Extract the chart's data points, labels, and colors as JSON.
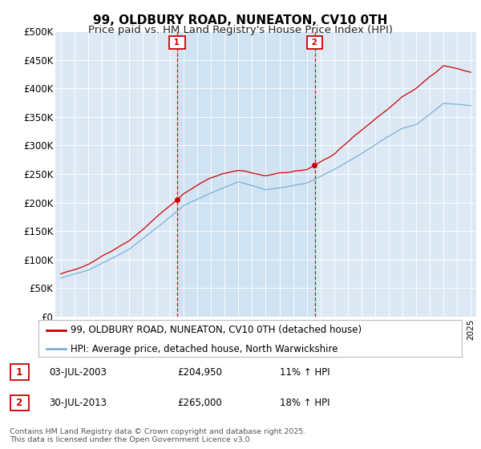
{
  "title": "99, OLDBURY ROAD, NUNEATON, CV10 0TH",
  "subtitle": "Price paid vs. HM Land Registry's House Price Index (HPI)",
  "ylabel_ticks": [
    "£0",
    "£50K",
    "£100K",
    "£150K",
    "£200K",
    "£250K",
    "£300K",
    "£350K",
    "£400K",
    "£450K",
    "£500K"
  ],
  "ytick_values": [
    0,
    50000,
    100000,
    150000,
    200000,
    250000,
    300000,
    350000,
    400000,
    450000,
    500000
  ],
  "ylim": [
    0,
    500000
  ],
  "background_color": "#dce9f5",
  "shade_color": "#c8dff0",
  "hpi_color": "#7ab0d8",
  "price_color": "#cc0000",
  "annotation1": {
    "label": "1",
    "date_str": "03-JUL-2003",
    "price": "£204,950",
    "pct": "11% ↑ HPI"
  },
  "annotation2": {
    "label": "2",
    "date_str": "30-JUL-2013",
    "price": "£265,000",
    "pct": "18% ↑ HPI"
  },
  "legend_price": "99, OLDBURY ROAD, NUNEATON, CV10 0TH (detached house)",
  "legend_hpi": "HPI: Average price, detached house, North Warwickshire",
  "footer": "Contains HM Land Registry data © Crown copyright and database right 2025.\nThis data is licensed under the Open Government Licence v3.0.",
  "vline1_year": 2003.5,
  "vline2_year": 2013.58,
  "title_fontsize": 11,
  "subtitle_fontsize": 9.5,
  "tick_fontsize": 8.5
}
